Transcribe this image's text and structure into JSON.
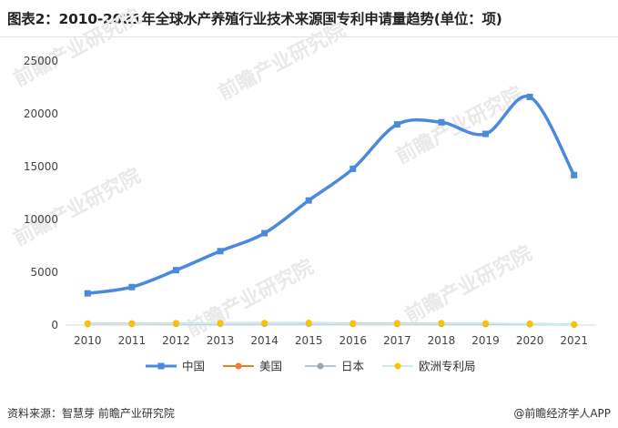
{
  "page": {
    "title": "图表2：2010-2021年全球水产养殖行业技术来源国专利申请量趋势(单位：项)",
    "source": "资料来源：智慧芽 前瞻产业研究院",
    "brand": "@前瞻经济学人APP",
    "watermark": "前瞻产业研究院"
  },
  "colors": {
    "china": "#4a89dc",
    "usa": "#ed7d31",
    "japan": "#a5a5a5",
    "epo": "#ffc000",
    "japan_line": "#b4c7e7",
    "epo_line": "#c6efef"
  },
  "chart_data": {
    "type": "line",
    "title": "图表2：2010-2021年全球水产养殖行业技术来源国专利申请量趋势(单位：项)",
    "x": [
      "2010",
      "2011",
      "2012",
      "2013",
      "2014",
      "2015",
      "2016",
      "2017",
      "2018",
      "2019",
      "2020",
      "2021"
    ],
    "ylim": [
      0,
      25000
    ],
    "yticks": [
      0,
      5000,
      10000,
      15000,
      20000,
      25000
    ],
    "grid": false,
    "legend_position": "bottom",
    "series": [
      {
        "name": "中国",
        "values": [
          3000,
          3600,
          5200,
          7000,
          8700,
          11800,
          14800,
          19000,
          19200,
          18100,
          21600,
          14200
        ]
      },
      {
        "name": "美国",
        "values": [
          150,
          150,
          170,
          180,
          190,
          200,
          160,
          170,
          170,
          140,
          120,
          60
        ]
      },
      {
        "name": "日本",
        "values": [
          100,
          110,
          120,
          130,
          130,
          140,
          110,
          110,
          120,
          100,
          80,
          40
        ]
      },
      {
        "name": "欧洲专利局",
        "values": [
          130,
          130,
          160,
          170,
          180,
          200,
          140,
          150,
          160,
          160,
          120,
          60
        ]
      }
    ]
  }
}
